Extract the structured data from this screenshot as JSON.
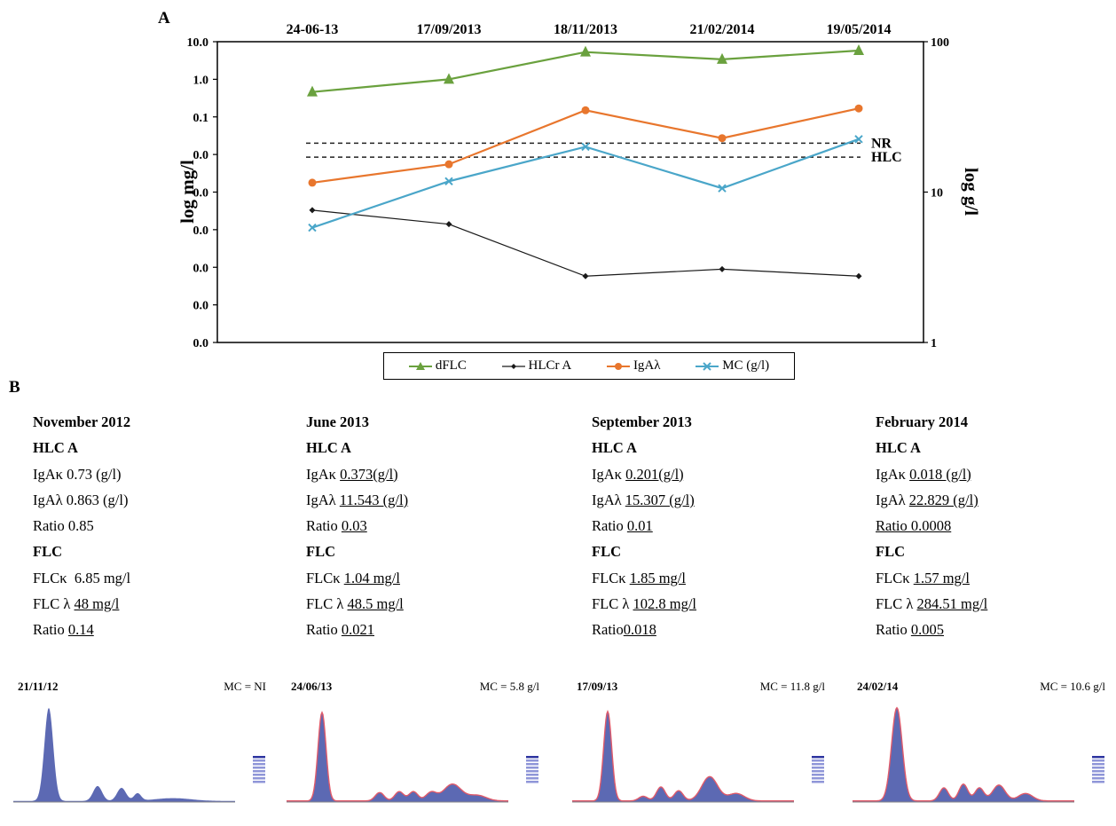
{
  "panel_a_label": "A",
  "panel_b_label": "B",
  "colors": {
    "dFLC": "#6aa13e",
    "HLCr A": "#1a1a1a",
    "IgAλ": "#e8762d",
    "MC (g/l)": "#4aa6c9"
  },
  "chart_data": {
    "type": "line",
    "categories": [
      "24-06-13",
      "17/09/2013",
      "18/11/2013",
      "21/02/2014",
      "19/05/2014"
    ],
    "y_left": {
      "label": "log mg/l",
      "scale": "log",
      "range": [
        1e-07,
        10
      ],
      "tick_values": [
        10,
        1,
        0.1,
        0.01,
        0.001,
        0.0001,
        1e-05,
        1e-06,
        1e-07
      ],
      "tick_labels": [
        "10.0",
        "1.0",
        "0.1",
        "0.0",
        "0.0",
        "0.0",
        "0.0",
        "0.0",
        "0.0"
      ]
    },
    "y_right": {
      "label": "log g/l",
      "scale": "log",
      "range": [
        1,
        100
      ],
      "tick_values": [
        100,
        10,
        1
      ],
      "tick_labels": [
        "100",
        "10",
        "1"
      ]
    },
    "series": [
      {
        "name": "dFLC",
        "axis": "left",
        "marker": "triangle",
        "values": [
          0.46,
          1.0,
          5.3,
          3.4,
          5.8
        ]
      },
      {
        "name": "HLCr A",
        "axis": "left",
        "marker": "diamond",
        "values": [
          0.00033,
          0.00014,
          5.8e-06,
          8.9e-06,
          5.8e-06
        ]
      },
      {
        "name": "IgAλ",
        "axis": "right",
        "marker": "circle",
        "values": [
          11.543,
          15.307,
          35,
          22.829,
          36
        ]
      },
      {
        "name": "MC (g/l)",
        "axis": "right",
        "marker": "x",
        "values": [
          5.8,
          11.8,
          20,
          10.6,
          22.5
        ]
      }
    ],
    "reference_lines": [
      {
        "label": "NR",
        "axis": "left",
        "value": 0.02,
        "style": "dashed"
      },
      {
        "label": "HLC",
        "axis": "left",
        "value": 0.0085,
        "style": "dashed"
      }
    ],
    "grid": false,
    "legend_position": "bottom"
  },
  "panel_b": [
    {
      "period": "November 2012",
      "hlc_title": "HLC A",
      "igak_label": "IgAκ",
      "igak": "0.73 (g/l)",
      "igal_label": "IgAλ",
      "igal": "0.863 (g/l)",
      "hlc_ratio_label": "Ratio",
      "hlc_ratio": "0.85",
      "flc_title": "FLC",
      "flck_label": "FLCκ",
      "flck": "6.85 mg/l",
      "flcl_label": "FLC λ",
      "flcl": "48 mg/l",
      "flc_ratio_label": "Ratio",
      "flc_ratio": "0.14"
    },
    {
      "period": "June 2013",
      "hlc_title": "HLC A",
      "igak_label": "IgAκ",
      "igak": "0.373(g/l)",
      "igal_label": "IgAλ",
      "igal": "11.543 (g/l)",
      "hlc_ratio_label": "Ratio",
      "hlc_ratio": "0.03",
      "flc_title": "FLC",
      "flck_label": "FLCκ",
      "flck": "1.04 mg/l",
      "flcl_label": "FLC λ",
      "flcl": "48.5 mg/l",
      "flc_ratio_label": "Ratio",
      "flc_ratio": "0.021"
    },
    {
      "period": "September 2013",
      "hlc_title": "HLC A",
      "igak_label": "IgAκ",
      "igak": "0.201(g/l)",
      "igal_label": "IgAλ",
      "igal": "15.307 (g/l)",
      "hlc_ratio_label": "Ratio",
      "hlc_ratio": "0.01",
      "flc_title": "FLC",
      "flck_label": "FLCκ",
      "flck": "1.85 mg/l",
      "flcl_label": "FLC λ",
      "flcl": "102.8 mg/l",
      "flc_ratio_label": "Ratio",
      "flc_ratio": "0.018"
    },
    {
      "period": "February 2014",
      "hlc_title": "HLC A",
      "igak_label": "IgAκ",
      "igak": "0.018 (g/l)",
      "igal_label": "IgAλ",
      "igal": "22.829 (g/l)",
      "hlc_ratio_label": "Ratio 0.0008",
      "hlc_ratio": "",
      "flc_title": "FLC",
      "flck_label": "FLCκ",
      "flck": "1.57 mg/l",
      "flcl_label": "FLC λ",
      "flcl": "284.51 mg/l",
      "flc_ratio_label": "Ratio",
      "flc_ratio": "0.005"
    }
  ],
  "electrophoresis": [
    {
      "date": "21/11/12",
      "mc": "MC = NI"
    },
    {
      "date": "24/06/13",
      "mc": "MC = 5.8 g/l"
    },
    {
      "date": "17/09/13",
      "mc": "MC = 11.8 g/l"
    },
    {
      "date": "24/02/14",
      "mc": "MC = 10.6 g/l"
    }
  ]
}
